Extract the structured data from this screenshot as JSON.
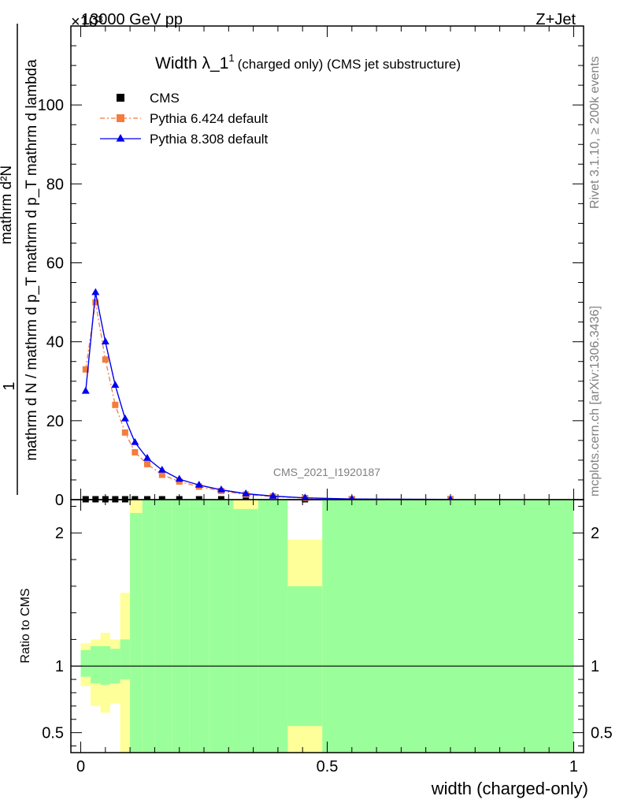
{
  "header": {
    "left": "13000 GeV pp",
    "right": "Z+Jet",
    "exponent": "×10³"
  },
  "side_labels": {
    "rivet": "Rivet 3.1.10, ≥ 200k events",
    "mcplots": "mcplots.cern.ch [arXiv:1306.3436]"
  },
  "watermark": "CMS_2021_I1920187",
  "chart_data": [
    {
      "type": "line",
      "title": "Width λ_1¹ (charged only) (CMS jet substructure)",
      "title_main": "Width λ_1",
      "title_sup": "1",
      "title_rest": "(charged only) (CMS jet substructure)",
      "ylabel_numerator": "1",
      "ylabel_denominator": "mathrm d N / mathrm d p_T mathrm d p_T mathrm d lambda",
      "ylabel_fraction_top": "mathrm d²N",
      "ylim": [
        0,
        120
      ],
      "yticks": [
        "0",
        "20",
        "40",
        "60",
        "80",
        "100"
      ],
      "yticks_values": [
        0,
        20,
        40,
        60,
        80,
        100
      ],
      "xlim": [
        -0.02,
        1.02
      ],
      "legend_position": "top-left",
      "series": [
        {
          "name": "CMS",
          "color": "#000000",
          "marker": "square",
          "x": [
            0.01,
            0.03,
            0.05,
            0.07,
            0.09,
            0.11,
            0.135,
            0.165,
            0.2,
            0.24,
            0.285,
            0.335,
            0.39,
            0.455,
            0.55,
            0.75
          ],
          "values": [
            0.1,
            0.1,
            0.1,
            0.1,
            0.1,
            0.1,
            0.1,
            0.1,
            0.1,
            0.1,
            0.1,
            0.1,
            0.1,
            0.1,
            0.1,
            0.1
          ]
        },
        {
          "name": "Pythia 6.424 default",
          "color": "#f47c3c",
          "marker": "square",
          "x": [
            0.01,
            0.03,
            0.05,
            0.07,
            0.09,
            0.11,
            0.135,
            0.165,
            0.2,
            0.24,
            0.285,
            0.335,
            0.39,
            0.455,
            0.55,
            0.75
          ],
          "values": [
            33,
            50,
            35.5,
            24,
            17,
            12,
            9,
            6.3,
            4.6,
            3.3,
            2.2,
            1.3,
            0.8,
            0.4,
            0.15,
            0.05
          ]
        },
        {
          "name": "Pythia 8.308 default",
          "color": "#0000ee",
          "marker": "triangle",
          "x": [
            0.01,
            0.03,
            0.05,
            0.07,
            0.09,
            0.11,
            0.135,
            0.165,
            0.2,
            0.24,
            0.285,
            0.335,
            0.39,
            0.455,
            0.55,
            0.75
          ],
          "values": [
            27.5,
            52.5,
            40,
            29,
            20.5,
            14.5,
            10.5,
            7.5,
            5.2,
            3.7,
            2.5,
            1.5,
            0.9,
            0.45,
            0.15,
            0.05
          ]
        }
      ]
    },
    {
      "type": "area",
      "ylabel": "Ratio to CMS",
      "ylim": [
        0.35,
        2.25
      ],
      "yticks": [
        "0.5",
        "1",
        "2"
      ],
      "yticks_values": [
        0.5,
        1,
        2
      ],
      "reference_value": 1,
      "xlim": [
        -0.02,
        1.02
      ],
      "xlabel": "width (charged-only)",
      "xticks": [
        "0",
        "0.5",
        "1"
      ],
      "xticks_values": [
        0,
        0.5,
        1
      ],
      "bands": {
        "green": "#9aff9a",
        "yellow": "#ffff99",
        "bins": [
          {
            "x0": 0.0,
            "x1": 0.02,
            "g_lo": 0.92,
            "g_hi": 1.12,
            "y_lo": 0.85,
            "y_hi": 1.17
          },
          {
            "x0": 0.02,
            "x1": 0.04,
            "g_lo": 0.87,
            "g_hi": 1.15,
            "y_lo": 0.7,
            "y_hi": 1.2
          },
          {
            "x0": 0.04,
            "x1": 0.06,
            "g_lo": 0.86,
            "g_hi": 1.15,
            "y_lo": 0.65,
            "y_hi": 1.25
          },
          {
            "x0": 0.06,
            "x1": 0.08,
            "g_lo": 0.87,
            "g_hi": 1.13,
            "y_lo": 0.72,
            "y_hi": 1.2
          },
          {
            "x0": 0.08,
            "x1": 0.1,
            "g_lo": 0.9,
            "g_hi": 1.2,
            "y_lo": 0.35,
            "y_hi": 1.55
          },
          {
            "x0": 0.1,
            "x1": 0.125,
            "g_lo": 0.35,
            "g_hi": 2.15,
            "y_lo": 0.35,
            "y_hi": 2.25
          },
          {
            "x0": 0.125,
            "x1": 0.15,
            "g_lo": 0.35,
            "g_hi": 2.25,
            "y_lo": 0.35,
            "y_hi": 2.25
          },
          {
            "x0": 0.15,
            "x1": 0.185,
            "g_lo": 0.35,
            "g_hi": 2.25,
            "y_lo": 0.35,
            "y_hi": 2.25
          },
          {
            "x0": 0.185,
            "x1": 0.22,
            "g_lo": 0.35,
            "g_hi": 2.25,
            "y_lo": 0.35,
            "y_hi": 2.25
          },
          {
            "x0": 0.22,
            "x1": 0.26,
            "g_lo": 0.35,
            "g_hi": 2.25,
            "y_lo": 0.35,
            "y_hi": 2.25
          },
          {
            "x0": 0.26,
            "x1": 0.31,
            "g_lo": 0.35,
            "g_hi": 2.25,
            "y_lo": 0.35,
            "y_hi": 2.25
          },
          {
            "x0": 0.31,
            "x1": 0.36,
            "g_lo": 0.35,
            "g_hi": 2.18,
            "y_lo": 0.35,
            "y_hi": 2.25
          },
          {
            "x0": 0.36,
            "x1": 0.42,
            "g_lo": 0.35,
            "g_hi": 2.25,
            "y_lo": 0.35,
            "y_hi": 2.25
          },
          {
            "x0": 0.42,
            "x1": 0.49,
            "g_lo": 0.55,
            "g_hi": 1.6,
            "y_lo": 0.35,
            "y_hi": 1.95
          },
          {
            "x0": 0.49,
            "x1": 1.0,
            "g_lo": 0.35,
            "g_hi": 2.25,
            "y_lo": 0.35,
            "y_hi": 2.25
          }
        ]
      }
    }
  ]
}
